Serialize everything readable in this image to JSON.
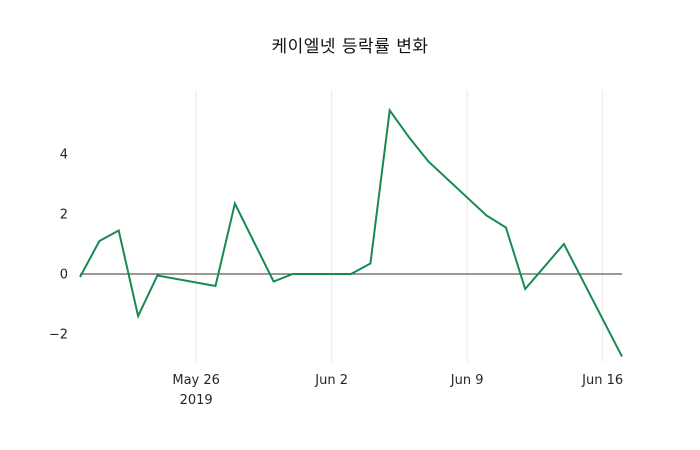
{
  "page": {
    "background_color": "#ffffff"
  },
  "chart_data": {
    "type": "line",
    "title": "케이엘넷 등락률 변화",
    "series_name": "등락률",
    "x": [
      "2019-05-20",
      "2019-05-21",
      "2019-05-22",
      "2019-05-23",
      "2019-05-24",
      "2019-05-27",
      "2019-05-28",
      "2019-05-29",
      "2019-05-30",
      "2019-05-31",
      "2019-06-03",
      "2019-06-04",
      "2019-06-05",
      "2019-06-06",
      "2019-06-07",
      "2019-06-10",
      "2019-06-11",
      "2019-06-12",
      "2019-06-14",
      "2019-06-17"
    ],
    "values": [
      -0.1,
      1.1,
      1.45,
      -1.4,
      -0.05,
      -0.4,
      2.35,
      1.05,
      -0.25,
      0.0,
      0.0,
      0.35,
      5.45,
      4.55,
      3.75,
      1.95,
      1.55,
      -0.5,
      1.0,
      -2.75
    ],
    "ylim": [
      -2.93,
      6.13
    ],
    "yticks": [
      {
        "value": -2,
        "label": "−2"
      },
      {
        "value": 0,
        "label": "0"
      },
      {
        "value": 2,
        "label": "2"
      },
      {
        "value": 4,
        "label": "4"
      }
    ],
    "xticks": [
      {
        "date": "2019-05-26",
        "label": "May 26",
        "sub": "2019"
      },
      {
        "date": "2019-06-02",
        "label": "Jun 2",
        "sub": ""
      },
      {
        "date": "2019-06-09",
        "label": "Jun 9",
        "sub": ""
      },
      {
        "date": "2019-06-16",
        "label": "Jun 16",
        "sub": ""
      }
    ],
    "x_range": [
      "2019-05-20",
      "2019-06-17"
    ],
    "line_color": "#178a52",
    "zero_line": true,
    "zero_line_color": "#333333",
    "grid": "vertical-only",
    "grid_color": "#e9e9e9",
    "text_color": "#262626",
    "legend": "none"
  }
}
